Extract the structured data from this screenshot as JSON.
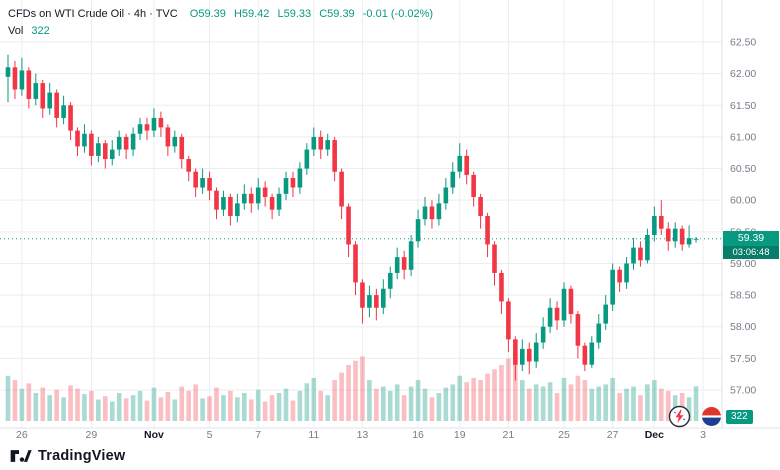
{
  "header": {
    "title": "CFDs on WTI Crude Oil · 4h · TVC",
    "o": "O59.39",
    "h": "H59.42",
    "l": "L59.33",
    "c": "C59.39",
    "change": "-0.01 (-0.02%)",
    "vol_label": "Vol",
    "vol_value": "322"
  },
  "price_badge": {
    "price": "59.39",
    "countdown": "03:06:48",
    "volume": "322"
  },
  "footer": {
    "brand": "TradingView"
  },
  "colors": {
    "up": "#089981",
    "down": "#f23645",
    "vol_up": "rgba(8,153,129,0.35)",
    "vol_down": "rgba(242,54,69,0.32)",
    "grid": "#ecedf0",
    "axis_border": "#e0e3eb",
    "axis_text": "#787b86",
    "text": "#131722",
    "price_line": "#089981",
    "badge": "#089981"
  },
  "chart_data": {
    "type": "candlestick",
    "title": "CFDs on WTI Crude Oil",
    "interval": "4h",
    "exchange": "TVC",
    "ylim": [
      57.0,
      62.5
    ],
    "grid": true,
    "last_price": 59.39,
    "y_ticks": [
      {
        "price": 62.5,
        "label": "62.50"
      },
      {
        "price": 62.0,
        "label": "62.00"
      },
      {
        "price": 61.5,
        "label": "61.50"
      },
      {
        "price": 61.0,
        "label": "61.00"
      },
      {
        "price": 60.5,
        "label": "60.50"
      },
      {
        "price": 60.0,
        "label": "60.00"
      },
      {
        "price": 59.5,
        "label": "59.50"
      },
      {
        "price": 59.0,
        "label": "59.00"
      },
      {
        "price": 58.5,
        "label": "58.50"
      },
      {
        "price": 58.0,
        "label": "58.00"
      },
      {
        "price": 57.5,
        "label": "57.50"
      },
      {
        "price": 57.0,
        "label": "57.00"
      }
    ],
    "x_ticks": [
      {
        "i": 2,
        "label": "26",
        "major": false
      },
      {
        "i": 12,
        "label": "29",
        "major": false
      },
      {
        "i": 21,
        "label": "Nov",
        "major": true
      },
      {
        "i": 29,
        "label": "5",
        "major": false
      },
      {
        "i": 36,
        "label": "7",
        "major": false
      },
      {
        "i": 44,
        "label": "11",
        "major": false
      },
      {
        "i": 51,
        "label": "13",
        "major": false
      },
      {
        "i": 59,
        "label": "16",
        "major": false
      },
      {
        "i": 65,
        "label": "19",
        "major": false
      },
      {
        "i": 72,
        "label": "21",
        "major": false
      },
      {
        "i": 80,
        "label": "25",
        "major": false
      },
      {
        "i": 87,
        "label": "27",
        "major": false
      },
      {
        "i": 93,
        "label": "Dec",
        "major": true
      },
      {
        "i": 100,
        "label": "3",
        "major": false
      }
    ],
    "ohlc": [
      [
        61.95,
        62.3,
        61.55,
        62.1
      ],
      [
        62.1,
        62.2,
        61.6,
        61.75
      ],
      [
        61.75,
        62.25,
        61.65,
        62.05
      ],
      [
        62.05,
        62.1,
        61.45,
        61.6
      ],
      [
        61.6,
        62.0,
        61.5,
        61.85
      ],
      [
        61.85,
        61.9,
        61.3,
        61.45
      ],
      [
        61.45,
        61.85,
        61.35,
        61.7
      ],
      [
        61.7,
        61.75,
        61.15,
        61.3
      ],
      [
        61.3,
        61.65,
        61.2,
        61.5
      ],
      [
        61.5,
        61.55,
        60.95,
        61.1
      ],
      [
        61.1,
        61.15,
        60.7,
        60.85
      ],
      [
        60.85,
        61.2,
        60.75,
        61.05
      ],
      [
        61.05,
        61.1,
        60.55,
        60.7
      ],
      [
        60.7,
        61.0,
        60.6,
        60.9
      ],
      [
        60.9,
        60.95,
        60.5,
        60.65
      ],
      [
        60.65,
        60.95,
        60.55,
        60.8
      ],
      [
        60.8,
        61.1,
        60.7,
        61.0
      ],
      [
        61.0,
        61.05,
        60.65,
        60.8
      ],
      [
        60.8,
        61.15,
        60.7,
        61.05
      ],
      [
        61.05,
        61.3,
        60.95,
        61.2
      ],
      [
        61.2,
        61.3,
        60.95,
        61.1
      ],
      [
        61.1,
        61.45,
        61.0,
        61.3
      ],
      [
        61.3,
        61.4,
        61.0,
        61.15
      ],
      [
        61.15,
        61.2,
        60.7,
        60.85
      ],
      [
        60.85,
        61.1,
        60.75,
        61.0
      ],
      [
        61.0,
        61.05,
        60.5,
        60.65
      ],
      [
        60.65,
        60.7,
        60.3,
        60.45
      ],
      [
        60.45,
        60.5,
        60.05,
        60.2
      ],
      [
        60.2,
        60.5,
        60.1,
        60.35
      ],
      [
        60.35,
        60.45,
        60.0,
        60.15
      ],
      [
        60.15,
        60.2,
        59.7,
        59.85
      ],
      [
        59.85,
        60.15,
        59.75,
        60.05
      ],
      [
        60.05,
        60.1,
        59.6,
        59.75
      ],
      [
        59.75,
        60.1,
        59.65,
        59.95
      ],
      [
        59.95,
        60.25,
        59.85,
        60.1
      ],
      [
        60.1,
        60.2,
        59.8,
        59.95
      ],
      [
        59.95,
        60.35,
        59.85,
        60.2
      ],
      [
        60.2,
        60.3,
        59.9,
        60.05
      ],
      [
        60.05,
        60.1,
        59.7,
        59.85
      ],
      [
        59.85,
        60.2,
        59.75,
        60.1
      ],
      [
        60.1,
        60.45,
        60.0,
        60.35
      ],
      [
        60.35,
        60.45,
        60.05,
        60.2
      ],
      [
        60.2,
        60.6,
        60.1,
        60.5
      ],
      [
        60.5,
        60.9,
        60.4,
        60.8
      ],
      [
        60.8,
        61.15,
        60.7,
        61.0
      ],
      [
        61.0,
        61.1,
        60.65,
        60.8
      ],
      [
        60.8,
        61.05,
        60.7,
        60.95
      ],
      [
        60.95,
        61.0,
        60.3,
        60.45
      ],
      [
        60.45,
        60.5,
        59.7,
        59.9
      ],
      [
        59.9,
        59.95,
        59.1,
        59.3
      ],
      [
        59.3,
        59.35,
        58.5,
        58.7
      ],
      [
        58.7,
        58.75,
        58.05,
        58.3
      ],
      [
        58.3,
        58.65,
        58.15,
        58.5
      ],
      [
        58.5,
        58.6,
        58.1,
        58.3
      ],
      [
        58.3,
        58.75,
        58.2,
        58.6
      ],
      [
        58.6,
        58.95,
        58.45,
        58.85
      ],
      [
        58.85,
        59.25,
        58.75,
        59.1
      ],
      [
        59.1,
        59.2,
        58.75,
        58.9
      ],
      [
        58.9,
        59.45,
        58.8,
        59.35
      ],
      [
        59.35,
        59.85,
        59.25,
        59.7
      ],
      [
        59.7,
        60.05,
        59.6,
        59.9
      ],
      [
        59.9,
        60.0,
        59.55,
        59.7
      ],
      [
        59.7,
        60.1,
        59.6,
        59.95
      ],
      [
        59.95,
        60.35,
        59.85,
        60.2
      ],
      [
        60.2,
        60.6,
        60.1,
        60.45
      ],
      [
        60.45,
        60.9,
        60.35,
        60.7
      ],
      [
        60.7,
        60.8,
        60.25,
        60.4
      ],
      [
        60.4,
        60.45,
        59.9,
        60.05
      ],
      [
        60.05,
        60.1,
        59.55,
        59.75
      ],
      [
        59.75,
        59.8,
        59.1,
        59.3
      ],
      [
        59.3,
        59.35,
        58.65,
        58.85
      ],
      [
        58.85,
        58.9,
        58.2,
        58.4
      ],
      [
        58.4,
        58.45,
        57.6,
        57.8
      ],
      [
        57.8,
        57.85,
        57.15,
        57.4
      ],
      [
        57.4,
        57.8,
        57.3,
        57.65
      ],
      [
        57.65,
        57.75,
        57.25,
        57.45
      ],
      [
        57.45,
        57.9,
        57.35,
        57.75
      ],
      [
        57.75,
        58.15,
        57.65,
        58.0
      ],
      [
        58.0,
        58.45,
        57.9,
        58.3
      ],
      [
        58.3,
        58.4,
        57.95,
        58.1
      ],
      [
        58.1,
        58.7,
        58.0,
        58.6
      ],
      [
        58.6,
        58.65,
        58.05,
        58.2
      ],
      [
        58.2,
        58.25,
        57.5,
        57.7
      ],
      [
        57.7,
        57.75,
        57.3,
        57.4
      ],
      [
        57.4,
        57.85,
        57.35,
        57.75
      ],
      [
        57.75,
        58.2,
        57.65,
        58.05
      ],
      [
        58.05,
        58.5,
        57.95,
        58.35
      ],
      [
        58.35,
        59.0,
        58.25,
        58.9
      ],
      [
        58.9,
        58.95,
        58.55,
        58.7
      ],
      [
        58.7,
        59.1,
        58.6,
        59.0
      ],
      [
        59.0,
        59.4,
        58.9,
        59.25
      ],
      [
        59.25,
        59.35,
        58.95,
        59.05
      ],
      [
        59.05,
        59.55,
        59.0,
        59.45
      ],
      [
        59.45,
        59.9,
        59.35,
        59.75
      ],
      [
        59.75,
        60.0,
        59.45,
        59.55
      ],
      [
        59.55,
        59.65,
        59.2,
        59.35
      ],
      [
        59.35,
        59.65,
        59.25,
        59.55
      ],
      [
        59.55,
        59.6,
        59.2,
        59.3
      ],
      [
        59.3,
        59.6,
        59.25,
        59.4
      ],
      [
        59.39,
        59.42,
        59.33,
        59.39
      ]
    ],
    "volume": [
      420,
      380,
      300,
      350,
      260,
      310,
      240,
      290,
      220,
      330,
      300,
      250,
      280,
      200,
      230,
      180,
      260,
      210,
      240,
      280,
      190,
      310,
      220,
      270,
      200,
      320,
      280,
      340,
      210,
      230,
      310,
      240,
      280,
      220,
      260,
      200,
      290,
      180,
      240,
      260,
      300,
      190,
      280,
      350,
      400,
      280,
      240,
      380,
      450,
      520,
      560,
      600,
      380,
      300,
      320,
      280,
      340,
      240,
      320,
      380,
      300,
      220,
      260,
      310,
      340,
      420,
      360,
      400,
      380,
      440,
      480,
      520,
      580,
      620,
      380,
      300,
      340,
      320,
      360,
      260,
      400,
      340,
      420,
      380,
      300,
      320,
      340,
      400,
      260,
      300,
      320,
      240,
      340,
      380,
      300,
      280,
      240,
      260,
      220,
      322
    ]
  }
}
